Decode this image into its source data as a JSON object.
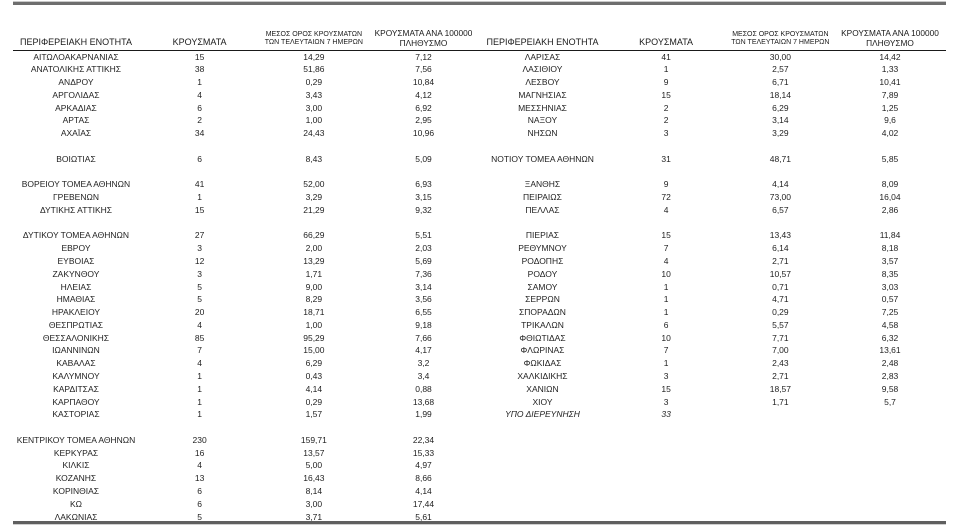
{
  "colors": {
    "outer_rule": "#6e6e6e",
    "header_rule": "#1a1a1a",
    "text": "#1f1f1f",
    "background": "#ffffff"
  },
  "column_headers": {
    "region": "ΠΕΡΙΦΕΡΕΙΑΚΗ ΕΝΟΤΗΤΑ",
    "cases": "ΚΡΟΥΣΜΑΤΑ",
    "avg7_line1": "ΜΕΣΟΣ ΟΡΟΣ ΚΡΟΥΣΜΑΤΩΝ",
    "avg7_line2": "ΤΩΝ ΤΕΛΕΥΤΑΙΩΝ 7 ΗΜΕΡΩΝ",
    "per100k_line1": "ΚΡΟΥΣΜΑΤΑ ΑΝΑ 100000",
    "per100k_line2": "ΠΛΗΘΥΣΜΟ"
  },
  "tables": [
    {
      "name": "left",
      "rows": [
        {
          "c": [
            "ΑΙΤΩΛΟΑΚΑΡΝΑΝΙΑΣ",
            "15",
            "14,29",
            "7,12"
          ]
        },
        {
          "c": [
            "ΑΝΑΤΟΛΙΚΗΣ ΑΤΤΙΚΗΣ",
            "38",
            "51,86",
            "7,56"
          ]
        },
        {
          "c": [
            "ΑΝΔΡΟΥ",
            "1",
            "0,29",
            "10,84"
          ]
        },
        {
          "c": [
            "ΑΡΓΟΛΙΔΑΣ",
            "4",
            "3,43",
            "4,12"
          ]
        },
        {
          "c": [
            "ΑΡΚΑΔΙΑΣ",
            "6",
            "3,00",
            "6,92"
          ]
        },
        {
          "c": [
            "ΑΡΤΑΣ",
            "2",
            "1,00",
            "2,95"
          ]
        },
        {
          "c": [
            "ΑΧΑΪΑΣ",
            "34",
            "24,43",
            "10,96"
          ]
        },
        {
          "c": [
            "",
            "",
            "",
            ""
          ]
        },
        {
          "c": [
            "ΒΟΙΩΤΙΑΣ",
            "6",
            "8,43",
            "5,09"
          ]
        },
        {
          "c": [
            "",
            "",
            "",
            ""
          ]
        },
        {
          "c": [
            "ΒΟΡΕΙΟΥ ΤΟΜΕΑ ΑΘΗΝΩΝ",
            "41",
            "52,00",
            "6,93"
          ]
        },
        {
          "c": [
            "ΓΡΕΒΕΝΩΝ",
            "1",
            "3,29",
            "3,15"
          ]
        },
        {
          "c": [
            "ΔΥΤΙΚΗΣ ΑΤΤΙΚΗΣ",
            "15",
            "21,29",
            "9,32"
          ]
        },
        {
          "c": [
            "",
            "",
            "",
            ""
          ]
        },
        {
          "c": [
            "ΔΥΤΙΚΟΥ ΤΟΜΕΑ ΑΘΗΝΩΝ",
            "27",
            "66,29",
            "5,51"
          ]
        },
        {
          "c": [
            "ΕΒΡΟΥ",
            "3",
            "2,00",
            "2,03"
          ]
        },
        {
          "c": [
            "ΕΥΒΟΙΑΣ",
            "12",
            "13,29",
            "5,69"
          ]
        },
        {
          "c": [
            "ΖΑΚΥΝΘΟΥ",
            "3",
            "1,71",
            "7,36"
          ]
        },
        {
          "c": [
            "ΗΛΕΙΑΣ",
            "5",
            "9,00",
            "3,14"
          ]
        },
        {
          "c": [
            "ΗΜΑΘΙΑΣ",
            "5",
            "8,29",
            "3,56"
          ]
        },
        {
          "c": [
            "ΗΡΑΚΛΕΙΟΥ",
            "20",
            "18,71",
            "6,55"
          ]
        },
        {
          "c": [
            "ΘΕΣΠΡΩΤΙΑΣ",
            "4",
            "1,00",
            "9,18"
          ]
        },
        {
          "c": [
            "ΘΕΣΣΑΛΟΝΙΚΗΣ",
            "85",
            "95,29",
            "7,66"
          ]
        },
        {
          "c": [
            "ΙΩΑΝΝΙΝΩΝ",
            "7",
            "15,00",
            "4,17"
          ]
        },
        {
          "c": [
            "ΚΑΒΑΛΑΣ",
            "4",
            "6,29",
            "3,2"
          ]
        },
        {
          "c": [
            "ΚΑΛΥΜΝΟΥ",
            "1",
            "0,43",
            "3,4"
          ]
        },
        {
          "c": [
            "ΚΑΡΔΙΤΣΑΣ",
            "1",
            "4,14",
            "0,88"
          ]
        },
        {
          "c": [
            "ΚΑΡΠΑΘΟΥ",
            "1",
            "0,29",
            "13,68"
          ]
        },
        {
          "c": [
            "ΚΑΣΤΟΡΙΑΣ",
            "1",
            "1,57",
            "1,99"
          ]
        },
        {
          "c": [
            "",
            "",
            "",
            ""
          ]
        },
        {
          "c": [
            "ΚΕΝΤΡΙΚΟΥ ΤΟΜΕΑ ΑΘΗΝΩΝ",
            "230",
            "159,71",
            "22,34"
          ]
        },
        {
          "c": [
            "ΚΕΡΚΥΡΑΣ",
            "16",
            "13,57",
            "15,33"
          ]
        },
        {
          "c": [
            "ΚΙΛΚΙΣ",
            "4",
            "5,00",
            "4,97"
          ]
        },
        {
          "c": [
            "ΚΟΖΑΝΗΣ",
            "13",
            "16,43",
            "8,66"
          ]
        },
        {
          "c": [
            "ΚΟΡΙΝΘΙΑΣ",
            "6",
            "8,14",
            "4,14"
          ]
        },
        {
          "c": [
            "ΚΩ",
            "6",
            "3,00",
            "17,44"
          ]
        },
        {
          "c": [
            "ΛΑΚΩΝΙΑΣ",
            "5",
            "3,71",
            "5,61"
          ]
        }
      ]
    },
    {
      "name": "right",
      "rows": [
        {
          "c": [
            "ΛΑΡΙΣΑΣ",
            "41",
            "30,00",
            "14,42"
          ]
        },
        {
          "c": [
            "ΛΑΣΙΘΙΟΥ",
            "1",
            "2,57",
            "1,33"
          ]
        },
        {
          "c": [
            "ΛΕΣΒΟΥ",
            "9",
            "6,71",
            "10,41"
          ]
        },
        {
          "c": [
            "ΜΑΓΝΗΣΙΑΣ",
            "15",
            "18,14",
            "7,89"
          ]
        },
        {
          "c": [
            "ΜΕΣΣΗΝΙΑΣ",
            "2",
            "6,29",
            "1,25"
          ]
        },
        {
          "c": [
            "ΝΑΞΟΥ",
            "2",
            "3,14",
            "9,6"
          ]
        },
        {
          "c": [
            "ΝΗΣΩΝ",
            "3",
            "3,29",
            "4,02"
          ]
        },
        {
          "c": [
            "",
            "",
            "",
            ""
          ]
        },
        {
          "c": [
            "ΝΟΤΙΟΥ ΤΟΜΕΑ ΑΘΗΝΩΝ",
            "31",
            "48,71",
            "5,85"
          ]
        },
        {
          "c": [
            "",
            "",
            "",
            ""
          ]
        },
        {
          "c": [
            "ΞΑΝΘΗΣ",
            "9",
            "4,14",
            "8,09"
          ]
        },
        {
          "c": [
            "ΠΕΙΡΑΙΩΣ",
            "72",
            "73,00",
            "16,04"
          ]
        },
        {
          "c": [
            "ΠΕΛΛΑΣ",
            "4",
            "6,57",
            "2,86"
          ]
        },
        {
          "c": [
            "",
            "",
            "",
            ""
          ]
        },
        {
          "c": [
            "ΠΙΕΡΙΑΣ",
            "15",
            "13,43",
            "11,84"
          ]
        },
        {
          "c": [
            "ΡΕΘΥΜΝΟΥ",
            "7",
            "6,14",
            "8,18"
          ]
        },
        {
          "c": [
            "ΡΟΔΟΠΗΣ",
            "4",
            "2,71",
            "3,57"
          ]
        },
        {
          "c": [
            "ΡΟΔΟΥ",
            "10",
            "10,57",
            "8,35"
          ]
        },
        {
          "c": [
            "ΣΑΜΟΥ",
            "1",
            "0,71",
            "3,03"
          ]
        },
        {
          "c": [
            "ΣΕΡΡΩΝ",
            "1",
            "4,71",
            "0,57"
          ]
        },
        {
          "c": [
            "ΣΠΟΡΑΔΩΝ",
            "1",
            "0,29",
            "7,25"
          ]
        },
        {
          "c": [
            "ΤΡΙΚΑΛΩΝ",
            "6",
            "5,57",
            "4,58"
          ]
        },
        {
          "c": [
            "ΦΘΙΩΤΙΔΑΣ",
            "10",
            "7,71",
            "6,32"
          ]
        },
        {
          "c": [
            "ΦΛΩΡΙΝΑΣ",
            "7",
            "7,00",
            "13,61"
          ]
        },
        {
          "c": [
            "ΦΩΚΙΔΑΣ",
            "1",
            "2,43",
            "2,48"
          ]
        },
        {
          "c": [
            "ΧΑΛΚΙΔΙΚΗΣ",
            "3",
            "2,71",
            "2,83"
          ]
        },
        {
          "c": [
            "ΧΑΝΙΩΝ",
            "15",
            "18,57",
            "9,58"
          ]
        },
        {
          "c": [
            "ΧΙΟΥ",
            "3",
            "1,71",
            "5,7"
          ]
        },
        {
          "c": [
            "ΥΠΟ ΔΙΕΡΕΥΝΗΣΗ",
            "33",
            "",
            ""
          ],
          "style": "italic"
        },
        {
          "c": [
            "",
            "",
            "",
            ""
          ]
        },
        {
          "c": [
            "",
            "",
            "",
            ""
          ]
        },
        {
          "c": [
            "",
            "",
            "",
            ""
          ]
        },
        {
          "c": [
            "",
            "",
            "",
            ""
          ]
        },
        {
          "c": [
            "",
            "",
            "",
            ""
          ]
        },
        {
          "c": [
            "",
            "",
            "",
            ""
          ]
        },
        {
          "c": [
            "",
            "",
            "",
            ""
          ]
        },
        {
          "c": [
            "",
            "",
            "",
            ""
          ]
        }
      ]
    }
  ]
}
